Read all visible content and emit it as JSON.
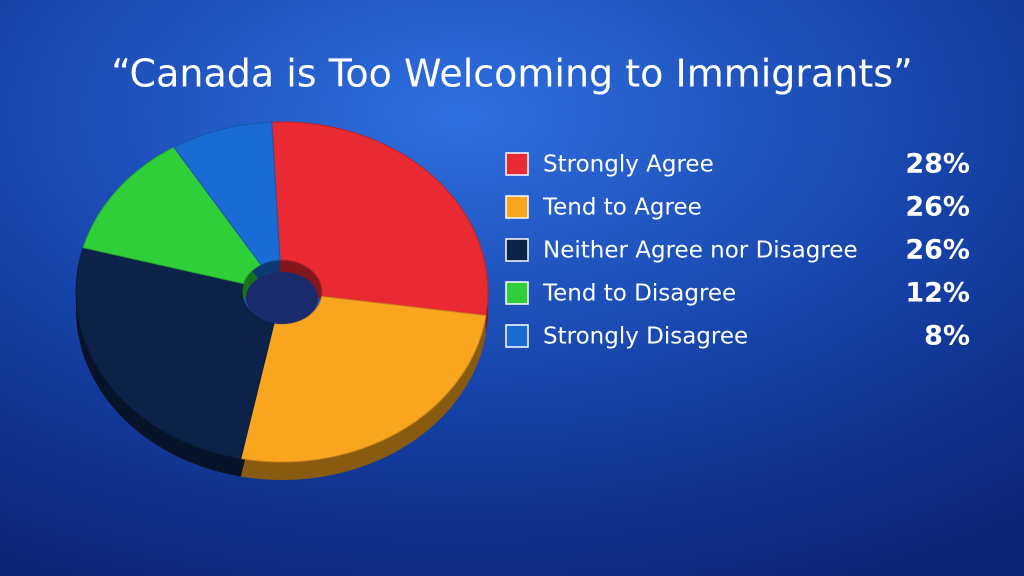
{
  "chart_data": {
    "type": "pie",
    "title": "“Canada is Too Welcoming to Immigrants”",
    "categories": [
      "Strongly Agree",
      "Tend to Agree",
      "Neither Agree nor Disagree",
      "Tend to Disagree",
      "Strongly Disagree"
    ],
    "values": [
      28,
      26,
      26,
      12,
      8
    ],
    "value_labels": [
      "28%",
      "26%",
      "26%",
      "12%",
      "8%"
    ],
    "colors": [
      "#ea2a33",
      "#f9a51f",
      "#0c2248",
      "#2fcf3a",
      "#1b6bd4"
    ],
    "legend": "right"
  }
}
